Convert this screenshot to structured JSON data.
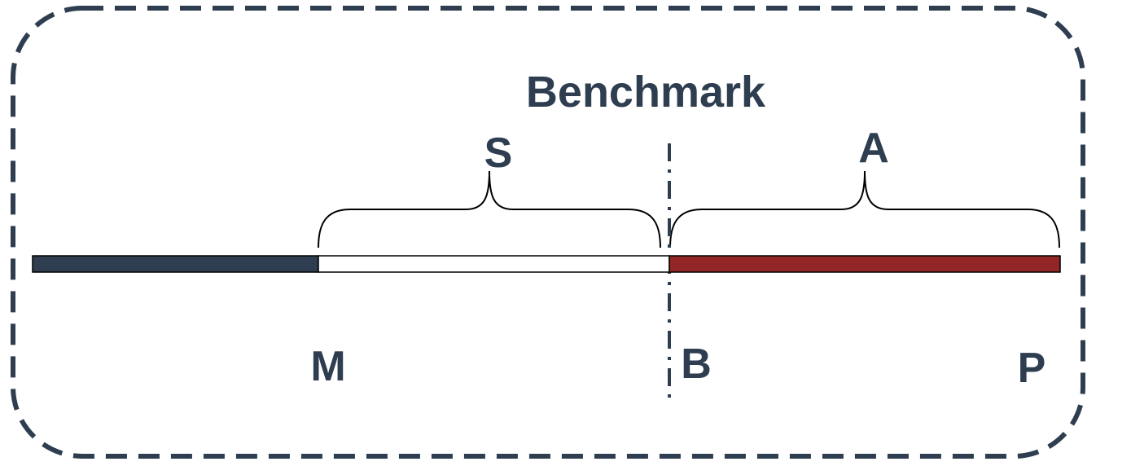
{
  "title": "Benchmark",
  "segment_labels": {
    "S": "S",
    "A": "A"
  },
  "point_labels": {
    "M": "M",
    "B": "B",
    "P": "P"
  },
  "colors": {
    "ink": "#2E3E50",
    "dark_segment": "#2E3E50",
    "light_segment": "#FFFFFF",
    "red_segment": "#922525",
    "brace": "#000000"
  }
}
